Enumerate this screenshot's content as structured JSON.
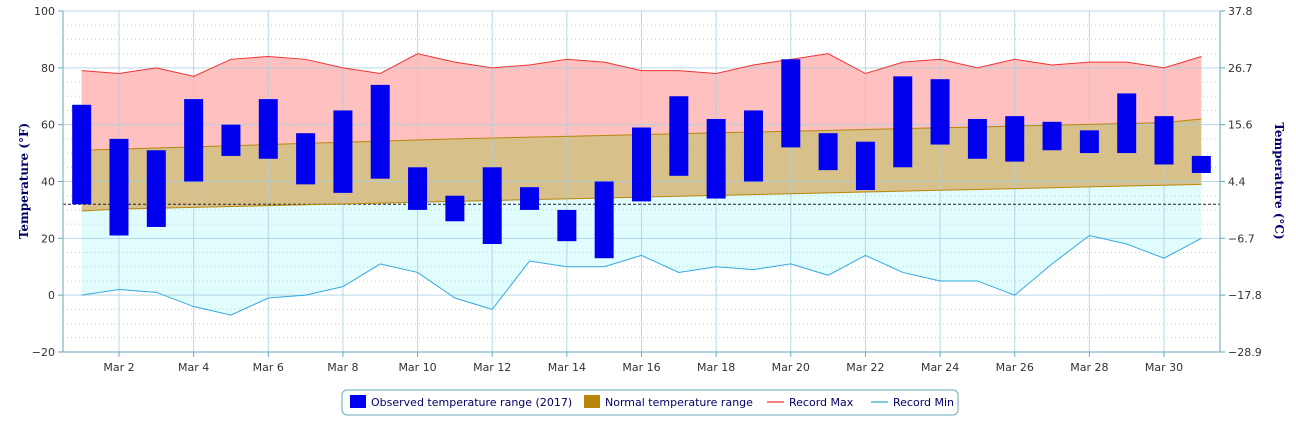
{
  "chart_data": {
    "type": "bar",
    "title": "",
    "ylabel_left": "Temperature (°F)",
    "ylabel_right": "Temperature (°C)",
    "xlim": [
      0.5,
      31.5
    ],
    "ylim_left": [
      -20,
      100
    ],
    "ylim_right": [
      -28.9,
      37.8
    ],
    "left_ticks": [
      -20,
      0,
      20,
      40,
      60,
      80,
      100
    ],
    "left_tick_labels": [
      "−20",
      "0",
      "20",
      "40",
      "60",
      "80",
      "100"
    ],
    "right_ticks_f": [
      -20,
      0,
      20,
      40,
      60,
      80,
      100
    ],
    "right_tick_labels": [
      "−28.9",
      "−17.8",
      "−6.7",
      "4.4",
      "15.6",
      "26.7",
      "37.8"
    ],
    "x_tick_days": [
      2,
      4,
      6,
      8,
      10,
      12,
      14,
      16,
      18,
      20,
      22,
      24,
      26,
      28,
      30
    ],
    "x_tick_labels": [
      "Mar 2",
      "Mar 4",
      "Mar 6",
      "Mar 8",
      "Mar 10",
      "Mar 12",
      "Mar 14",
      "Mar 16",
      "Mar 18",
      "Mar 20",
      "Mar 22",
      "Mar 24",
      "Mar 26",
      "Mar 28",
      "Mar 30"
    ],
    "freezing_line_f": 32,
    "grid": true,
    "legend_position": "bottom",
    "days": [
      1,
      2,
      3,
      4,
      5,
      6,
      7,
      8,
      9,
      10,
      11,
      12,
      13,
      14,
      15,
      16,
      17,
      18,
      19,
      20,
      21,
      22,
      23,
      24,
      25,
      26,
      27,
      28,
      29,
      30,
      31
    ],
    "series": [
      {
        "name": "Observed temperature range (2017)",
        "type": "range-bar",
        "color": "#0000ee",
        "low": [
          32,
          21,
          24,
          40,
          49,
          48,
          39,
          36,
          41,
          30,
          26,
          18,
          30,
          19,
          13,
          33,
          42,
          34,
          40,
          52,
          44,
          37,
          45,
          53,
          48,
          47,
          51,
          50,
          50,
          46,
          43
        ],
        "high": [
          67,
          55,
          51,
          69,
          60,
          69,
          57,
          65,
          74,
          45,
          35,
          45,
          38,
          30,
          40,
          59,
          70,
          62,
          65,
          83,
          57,
          54,
          77,
          76,
          62,
          63,
          61,
          58,
          71,
          63,
          49
        ]
      },
      {
        "name": "Normal temperature range",
        "type": "range-area",
        "color": "#b8860b",
        "fill": "#d8c08a",
        "low": [
          29.6,
          30.3,
          30.6,
          30.9,
          31.2,
          31.5,
          31.8,
          32.1,
          32.4,
          32.7,
          33.0,
          33.3,
          33.6,
          33.9,
          34.2,
          34.5,
          34.8,
          35.1,
          35.4,
          35.7,
          36.0,
          36.3,
          36.6,
          36.9,
          37.2,
          37.5,
          37.8,
          38.1,
          38.4,
          38.7,
          39.0
        ],
        "high": [
          51.0,
          51.4,
          51.8,
          52.2,
          52.6,
          53.0,
          53.4,
          53.8,
          54.2,
          54.6,
          55.0,
          55.3,
          55.6,
          55.9,
          56.2,
          56.5,
          56.8,
          57.1,
          57.4,
          57.7,
          58.0,
          58.3,
          58.6,
          58.9,
          59.2,
          59.5,
          59.8,
          60.1,
          60.4,
          60.7,
          62.0
        ]
      },
      {
        "name": "Record Max",
        "type": "line",
        "color": "#ee3333",
        "fill": "#ffc0c0",
        "values": [
          79,
          78,
          80,
          77,
          83,
          84,
          83,
          80,
          78,
          85,
          82,
          80,
          81,
          83,
          82,
          79,
          79,
          78,
          81,
          83,
          85,
          78,
          82,
          83,
          80,
          83,
          81,
          82,
          82,
          80,
          84
        ]
      },
      {
        "name": "Record Min",
        "type": "line",
        "color": "#33aadd",
        "fill": "#e0fcfc",
        "values": [
          0,
          2,
          1,
          -4,
          -7,
          -1,
          0,
          3,
          11,
          8,
          -1,
          -5,
          12,
          10,
          10,
          14,
          8,
          10,
          9,
          11,
          7,
          14,
          8,
          5,
          5,
          0,
          11,
          21,
          18,
          13,
          20
        ]
      }
    ]
  },
  "legend": {
    "items": [
      {
        "label": "Observed temperature range (2017)",
        "color": "#0000ee",
        "kind": "box"
      },
      {
        "label": "Normal temperature range",
        "color": "#b8860b",
        "kind": "box"
      },
      {
        "label": "Record Max",
        "color": "#ee3333",
        "kind": "line"
      },
      {
        "label": "Record Min",
        "color": "#33aadd",
        "kind": "line"
      }
    ]
  }
}
